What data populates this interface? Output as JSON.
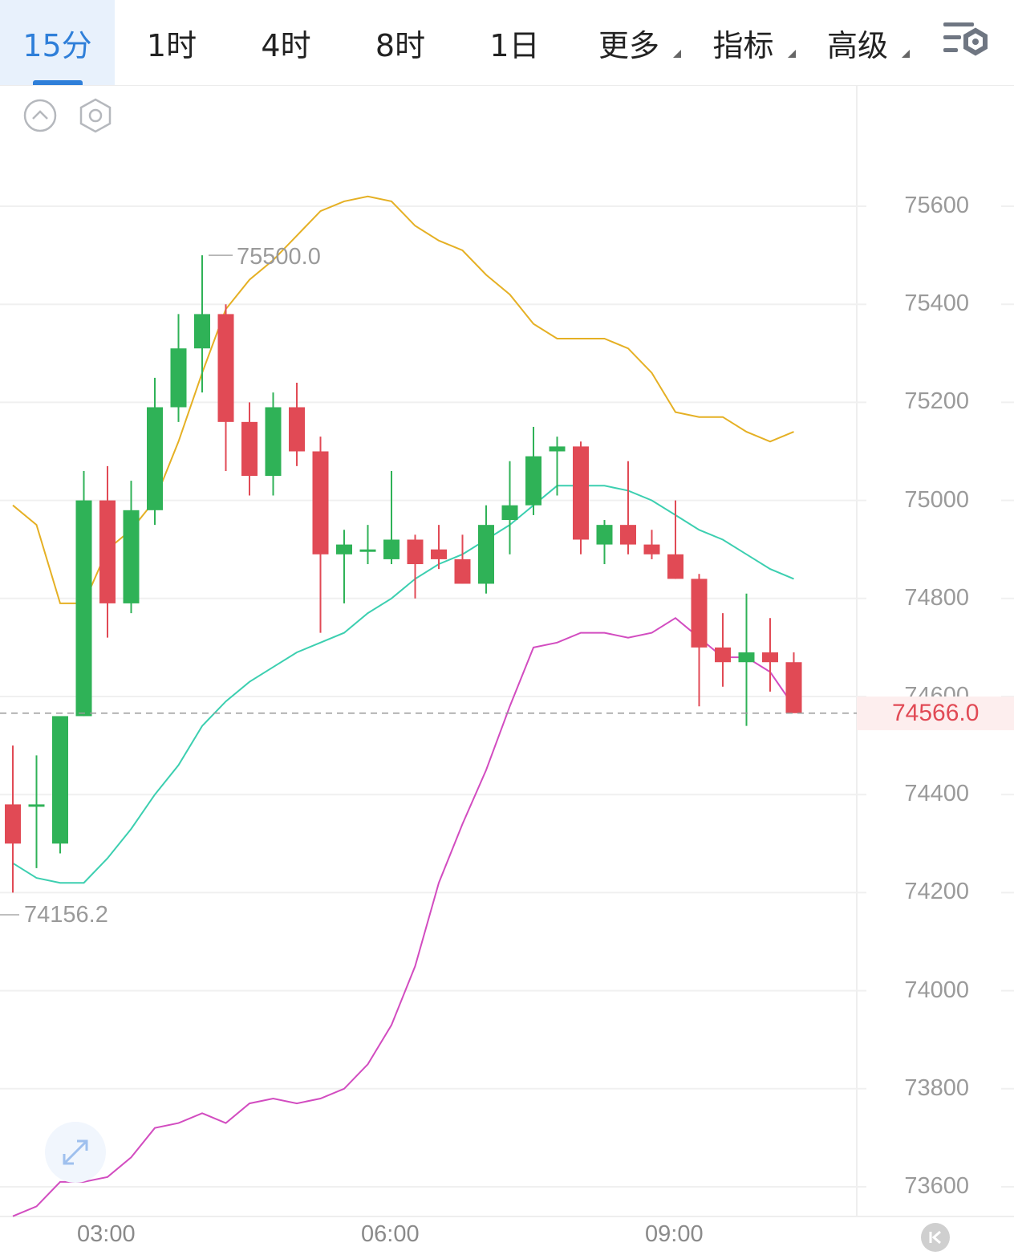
{
  "tabs": [
    {
      "label": "15分",
      "active": true,
      "dropdown": false
    },
    {
      "label": "1时",
      "active": false,
      "dropdown": false
    },
    {
      "label": "4时",
      "active": false,
      "dropdown": false
    },
    {
      "label": "8时",
      "active": false,
      "dropdown": false
    },
    {
      "label": "1日",
      "active": false,
      "dropdown": false
    },
    {
      "label": "更多",
      "active": false,
      "dropdown": true
    },
    {
      "label": "指标",
      "active": false,
      "dropdown": true
    },
    {
      "label": "高级",
      "active": false,
      "dropdown": true
    }
  ],
  "icons": {
    "settings": "chart-settings-icon",
    "collapse": "collapse-up-icon",
    "hexagon": "hexagon-settings-icon",
    "expand": "expand-arrows-icon",
    "jump_end": "jump-to-latest-icon"
  },
  "colors": {
    "accent": "#2f7fd9",
    "up": "#2fb257",
    "down": "#e14a55",
    "upper_band": "#e5b024",
    "middle_band": "#3ccfb0",
    "lower_band": "#d24cc0"
  },
  "chart_data": {
    "type": "candlestick",
    "interval": "15分",
    "y_axis": {
      "ticks": [
        "75600",
        "75400",
        "75200",
        "75000",
        "74800",
        "74600",
        "74400",
        "74200",
        "74000",
        "73800",
        "73600"
      ],
      "range": [
        73540,
        75980
      ]
    },
    "x_axis": {
      "ticks": [
        "03:00",
        "06:00",
        "09:00"
      ]
    },
    "high_label": "75500.0",
    "low_label": "74156.2",
    "current_price": "74566.0",
    "candles": [
      [
        74380,
        74500,
        74200,
        74300
      ],
      [
        74380,
        74480,
        74250,
        74380
      ],
      [
        74300,
        74560,
        74280,
        74560
      ],
      [
        74560,
        75060,
        74560,
        75000
      ],
      [
        75000,
        75070,
        74720,
        74790
      ],
      [
        74790,
        75040,
        74770,
        74980
      ],
      [
        74980,
        75250,
        74950,
        75190
      ],
      [
        75190,
        75380,
        75160,
        75310
      ],
      [
        75310,
        75500,
        75220,
        75380
      ],
      [
        75380,
        75400,
        75060,
        75160
      ],
      [
        75160,
        75200,
        75010,
        75050
      ],
      [
        75050,
        75220,
        75010,
        75190
      ],
      [
        75190,
        75240,
        75070,
        75100
      ],
      [
        75100,
        75130,
        74730,
        74890
      ],
      [
        74890,
        74940,
        74790,
        74910
      ],
      [
        74900,
        74950,
        74870,
        74900
      ],
      [
        74880,
        75060,
        74870,
        74920
      ],
      [
        74920,
        74930,
        74800,
        74870
      ],
      [
        74900,
        74950,
        74860,
        74880
      ],
      [
        74880,
        74930,
        74830,
        74830
      ],
      [
        74830,
        74990,
        74810,
        74950
      ],
      [
        74960,
        75080,
        74890,
        74990
      ],
      [
        74990,
        75150,
        74970,
        75090
      ],
      [
        75100,
        75130,
        75010,
        75110
      ],
      [
        75110,
        75120,
        74890,
        74920
      ],
      [
        74910,
        74960,
        74870,
        74950
      ],
      [
        74950,
        75080,
        74890,
        74910
      ],
      [
        74910,
        74940,
        74880,
        74890
      ],
      [
        74890,
        75000,
        74840,
        74840
      ],
      [
        74840,
        74850,
        74580,
        74700
      ],
      [
        74700,
        74770,
        74620,
        74670
      ],
      [
        74670,
        74810,
        74540,
        74690
      ],
      [
        74690,
        74760,
        74610,
        74670
      ],
      [
        74670,
        74690,
        74570,
        74566
      ]
    ],
    "series": [
      {
        "values": [
          74990,
          74950,
          74790,
          74790,
          74900,
          74940,
          75000,
          75120,
          75260,
          75390,
          75450,
          75490,
          75540,
          75590,
          75610,
          75620,
          75610,
          75560,
          75530,
          75510,
          75460,
          75420,
          75360,
          75330,
          75330,
          75330,
          75310,
          75260,
          75180,
          75170,
          75170,
          75140,
          75120,
          75140
        ]
      },
      {
        "values": [
          74260,
          74230,
          74220,
          74220,
          74270,
          74330,
          74400,
          74460,
          74540,
          74590,
          74630,
          74660,
          74690,
          74710,
          74730,
          74770,
          74800,
          74840,
          74870,
          74890,
          74920,
          74950,
          74990,
          75030,
          75030,
          75030,
          75020,
          75000,
          74970,
          74940,
          74920,
          74890,
          74860,
          74840
        ]
      },
      {
        "values": [
          73540,
          73560,
          73610,
          73610,
          73620,
          73660,
          73720,
          73730,
          73750,
          73730,
          73770,
          73780,
          73770,
          73780,
          73800,
          73850,
          73930,
          74050,
          74220,
          74340,
          74450,
          74580,
          74700,
          74710,
          74730,
          74730,
          74720,
          74730,
          74760,
          74720,
          74680,
          74680,
          74650,
          74580
        ]
      }
    ]
  }
}
